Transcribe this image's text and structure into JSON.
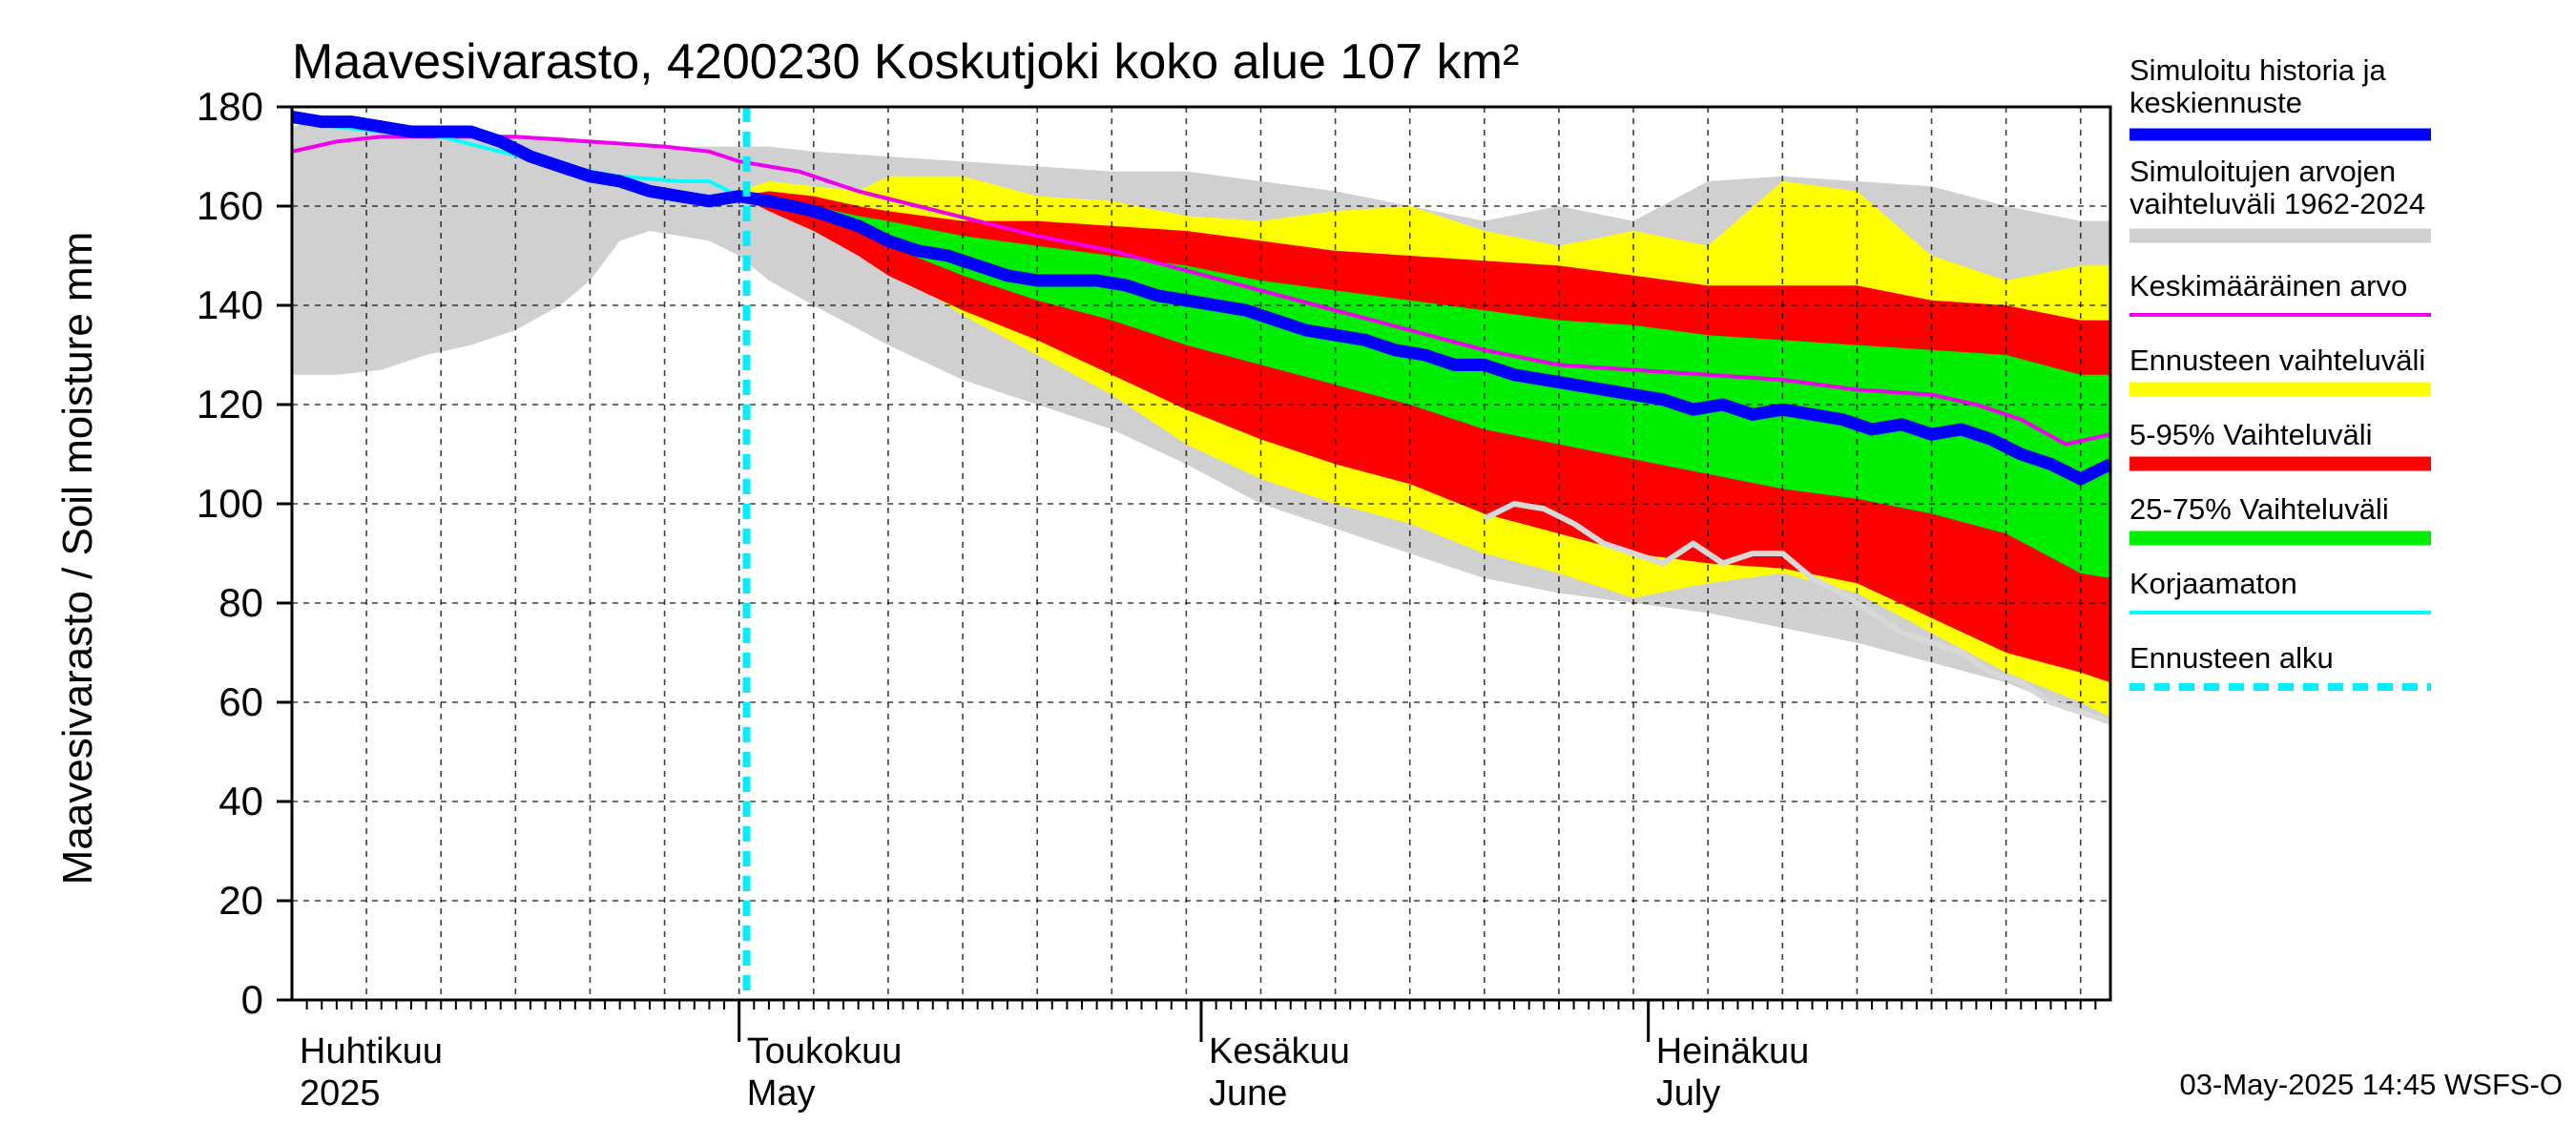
{
  "colors": {
    "history_range": "#d0d0d0",
    "forecast_range": "#ffff00",
    "range_5_95": "#ff0000",
    "range_25_75": "#00ee00",
    "median": "#0000ff",
    "mean": "#ee00ee",
    "uncorrected": "#00ffff",
    "forecast_start": "#00eeff",
    "uncorrected_grey": "#d8d8d8"
  },
  "chart_data": {
    "type": "area",
    "title": "Maavesivarasto, 4200230 Koskutjoki koko alue 107 km²",
    "ylabel": "Maavesivarasto / Soil moisture   mm",
    "ylim": [
      0,
      180
    ],
    "yticks": [
      "0",
      "20",
      "40",
      "60",
      "80",
      "100",
      "120",
      "140",
      "160",
      "180"
    ],
    "x_unit": "day index from 1 April 2025",
    "xlim": [
      0,
      122
    ],
    "forecast_start_day": 30.5,
    "months": [
      {
        "day": 0,
        "fi": "Huhtikuu",
        "en": "2025"
      },
      {
        "day": 30,
        "fi": "Toukokuu",
        "en": "May"
      },
      {
        "day": 61,
        "fi": "Kesäkuu",
        "en": "June"
      },
      {
        "day": 91,
        "fi": "Heinäkuu",
        "en": "July"
      }
    ],
    "timestamp": "03-May-2025 14:45 WSFS-O",
    "legend": [
      {
        "key": "median",
        "label1": "Simuloitu historia ja",
        "label2": "keskiennuste",
        "style": "thick"
      },
      {
        "key": "history_range",
        "label1": "Simuloitujen arvojen",
        "label2": "vaihteluväli 1962-2024",
        "style": "band"
      },
      {
        "key": "mean",
        "label1": "Keskimääräinen arvo",
        "label2": "",
        "style": "thin"
      },
      {
        "key": "forecast_range",
        "label1": "Ennusteen vaihteluväli",
        "label2": "",
        "style": "band"
      },
      {
        "key": "range_5_95",
        "label1": "5-95% Vaihteluväli",
        "label2": "",
        "style": "band"
      },
      {
        "key": "range_25_75",
        "label1": "25-75% Vaihteluväli",
        "label2": "",
        "style": "band"
      },
      {
        "key": "uncorrected",
        "label1": "Korjaamaton",
        "label2": "",
        "style": "thin"
      },
      {
        "key": "forecast_start",
        "label1": "Ennusteen alku",
        "label2": "",
        "style": "dash"
      }
    ],
    "series": {
      "history_range": {
        "x": [
          0,
          3,
          6,
          9,
          12,
          15,
          18,
          20,
          22,
          24,
          26,
          28,
          30,
          32,
          35,
          40,
          45,
          50,
          55,
          60,
          65,
          70,
          75,
          80,
          85,
          90,
          95,
          100,
          105,
          110,
          115,
          120,
          122
        ],
        "upper": [
          176,
          178,
          177,
          176,
          175,
          174,
          174,
          173,
          172,
          172,
          172,
          172,
          172,
          172,
          171,
          170,
          169,
          168,
          167,
          167,
          165,
          163,
          160,
          157,
          160,
          157,
          165,
          166,
          165,
          164,
          160,
          157,
          157
        ],
        "lower": [
          126,
          126,
          127,
          130,
          132,
          135,
          140,
          145,
          153,
          155,
          154,
          153,
          150,
          145,
          140,
          132,
          125,
          120,
          115,
          108,
          100,
          95,
          90,
          85,
          82,
          80,
          78,
          75,
          72,
          68,
          64,
          58,
          56
        ]
      },
      "forecast_range": {
        "x": [
          30,
          32,
          35,
          38,
          40,
          45,
          50,
          55,
          60,
          65,
          70,
          75,
          80,
          85,
          90,
          95,
          100,
          105,
          110,
          115,
          120,
          122
        ],
        "upper": [
          163,
          165,
          164,
          163,
          166,
          166,
          162,
          161,
          158,
          157,
          159,
          160,
          155,
          152,
          155,
          152,
          165,
          163,
          150,
          145,
          148,
          148
        ],
        "lower": [
          162,
          160,
          157,
          152,
          148,
          138,
          130,
          122,
          112,
          105,
          100,
          96,
          90,
          86,
          81,
          84,
          86,
          82,
          74,
          66,
          60,
          57
        ]
      },
      "range_5_95": {
        "x": [
          30,
          32,
          35,
          38,
          40,
          45,
          50,
          55,
          60,
          65,
          70,
          75,
          80,
          85,
          90,
          95,
          100,
          105,
          110,
          115,
          120,
          122
        ],
        "upper": [
          162,
          163,
          162,
          160,
          159,
          157,
          157,
          156,
          155,
          153,
          151,
          150,
          149,
          148,
          146,
          144,
          144,
          144,
          141,
          140,
          137,
          137
        ],
        "lower": [
          162,
          159,
          155,
          150,
          146,
          139,
          133,
          126,
          119,
          113,
          108,
          104,
          98,
          94,
          90,
          88,
          87,
          84,
          77,
          70,
          66,
          64
        ]
      },
      "range_25_75": {
        "x": [
          30,
          32,
          35,
          38,
          40,
          45,
          50,
          55,
          60,
          65,
          70,
          75,
          80,
          85,
          90,
          95,
          100,
          105,
          110,
          115,
          120,
          122
        ],
        "upper": [
          162,
          162,
          160,
          158,
          157,
          154,
          152,
          150,
          148,
          145,
          143,
          141,
          139,
          137,
          136,
          134,
          133,
          132,
          131,
          130,
          126,
          126
        ],
        "lower": [
          162,
          161,
          158,
          155,
          152,
          146,
          141,
          137,
          132,
          128,
          124,
          120,
          115,
          112,
          109,
          106,
          103,
          101,
          98,
          94,
          86,
          85
        ]
      },
      "median": {
        "x": [
          0,
          2,
          4,
          6,
          8,
          10,
          12,
          14,
          16,
          18,
          20,
          22,
          24,
          26,
          28,
          30,
          32,
          35,
          38,
          40,
          42,
          44,
          46,
          48,
          50,
          52,
          54,
          56,
          58,
          60,
          62,
          64,
          66,
          68,
          70,
          72,
          74,
          76,
          78,
          80,
          82,
          84,
          86,
          88,
          90,
          92,
          94,
          96,
          98,
          100,
          102,
          104,
          106,
          108,
          110,
          112,
          114,
          116,
          118,
          120,
          122
        ],
        "y": [
          178,
          177,
          177,
          176,
          175,
          175,
          175,
          173,
          170,
          168,
          166,
          165,
          163,
          162,
          161,
          162,
          161,
          159,
          156,
          153,
          151,
          150,
          148,
          146,
          145,
          145,
          145,
          144,
          142,
          141,
          140,
          139,
          137,
          135,
          134,
          133,
          131,
          130,
          128,
          128,
          126,
          125,
          124,
          123,
          122,
          121,
          119,
          120,
          118,
          119,
          118,
          117,
          115,
          116,
          114,
          115,
          113,
          110,
          108,
          105,
          108
        ]
      },
      "mean": {
        "x": [
          0,
          3,
          6,
          10,
          15,
          20,
          25,
          28,
          30,
          34,
          38,
          42,
          46,
          50,
          55,
          60,
          65,
          70,
          75,
          80,
          85,
          90,
          95,
          100,
          105,
          110,
          113,
          116,
          119,
          122
        ],
        "y": [
          171,
          173,
          174,
          174,
          174,
          173,
          172,
          171,
          169,
          167,
          163,
          160,
          157,
          154,
          151,
          147,
          143,
          139,
          135,
          131,
          128,
          127,
          126,
          125,
          123,
          122,
          120,
          117,
          112,
          114
        ]
      },
      "uncorrected": {
        "x": [
          0,
          3,
          6,
          10,
          14,
          18,
          22,
          26,
          28,
          30
        ],
        "y": [
          177,
          176,
          175,
          174,
          171,
          168,
          166,
          165,
          165,
          162
        ]
      },
      "uncorrected_grey": {
        "x": [
          80,
          82,
          84,
          86,
          88,
          90,
          92,
          94,
          96,
          98,
          100,
          102,
          104,
          106,
          108,
          110,
          112,
          114,
          116,
          118,
          120,
          122
        ],
        "y": [
          97,
          100,
          99,
          96,
          92,
          90,
          88,
          92,
          88,
          90,
          90,
          85,
          82,
          78,
          74,
          72,
          70,
          66,
          64,
          60,
          58,
          56
        ]
      }
    }
  }
}
